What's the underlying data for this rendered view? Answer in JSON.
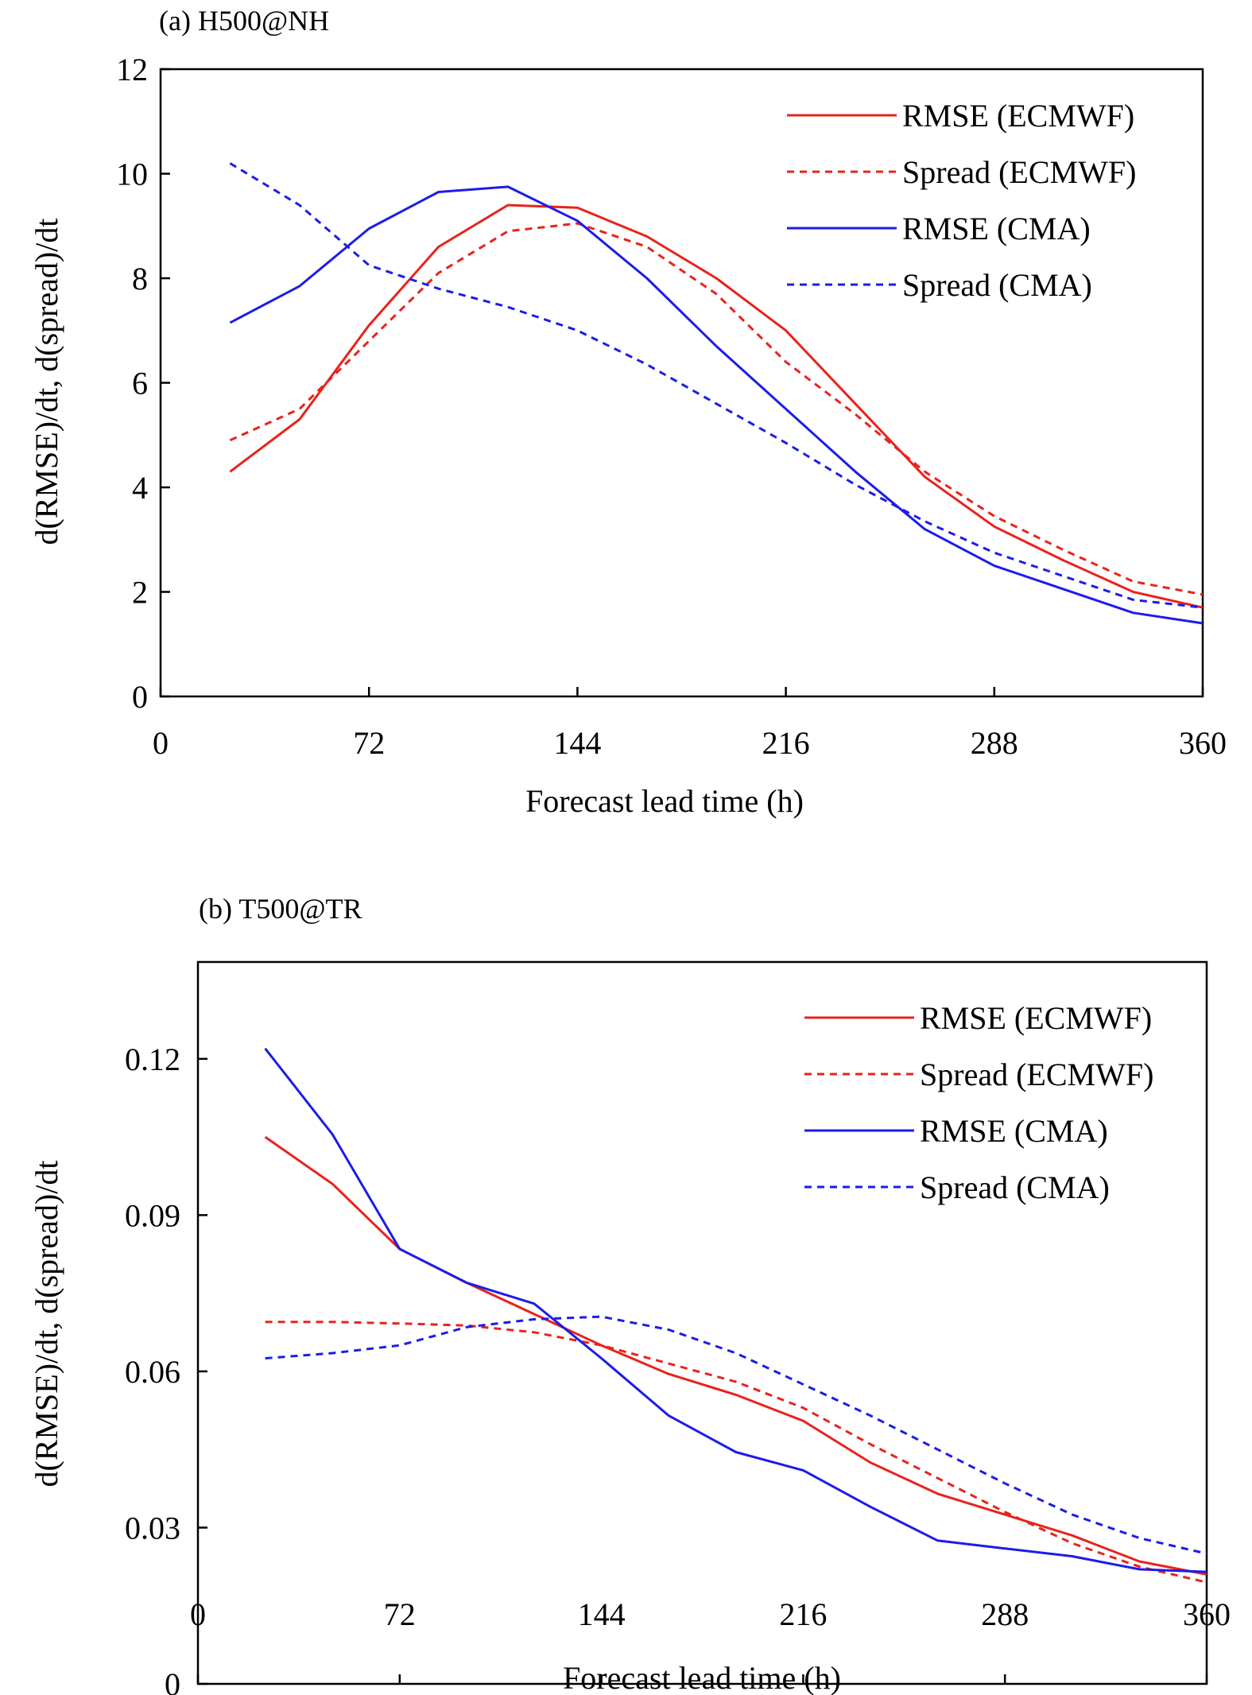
{
  "chart_data": [
    {
      "type": "line",
      "title": "(a) H500@NH",
      "xlabel": "Forecast lead time (h)",
      "ylabel": "d(RMSE)/dt, d(spread)/dt",
      "xlim": [
        0,
        360
      ],
      "ylim": [
        0,
        12
      ],
      "xticks": [
        0,
        72,
        144,
        216,
        288,
        360
      ],
      "yticks": [
        0,
        2,
        4,
        6,
        8,
        10,
        12
      ],
      "ytick_labels": [
        "0",
        "2",
        "4",
        "6",
        "8",
        "10",
        "12"
      ],
      "grid": false,
      "legend_position": "top-right",
      "series": [
        {
          "name": "RMSE (ECMWF)",
          "color": "#e8231c",
          "dash": "solid",
          "x": [
            24,
            48,
            72,
            96,
            120,
            144,
            168,
            192,
            216,
            240,
            264,
            288,
            312,
            336,
            360
          ],
          "y": [
            4.3,
            5.3,
            7.1,
            8.6,
            9.4,
            9.35,
            8.8,
            8.0,
            7.0,
            5.6,
            4.2,
            3.25,
            2.6,
            2.0,
            1.7
          ]
        },
        {
          "name": "Spread (ECMWF)",
          "color": "#e8231c",
          "dash": "dashed",
          "x": [
            24,
            48,
            72,
            96,
            120,
            144,
            168,
            192,
            216,
            240,
            264,
            288,
            312,
            336,
            360
          ],
          "y": [
            4.9,
            5.5,
            6.8,
            8.1,
            8.9,
            9.05,
            8.6,
            7.7,
            6.4,
            5.4,
            4.3,
            3.45,
            2.8,
            2.2,
            1.95
          ]
        },
        {
          "name": "RMSE (CMA)",
          "color": "#1c1ce8",
          "dash": "solid",
          "x": [
            24,
            48,
            72,
            96,
            120,
            144,
            168,
            192,
            216,
            240,
            264,
            288,
            312,
            336,
            360
          ],
          "y": [
            7.15,
            7.85,
            8.95,
            9.65,
            9.75,
            9.1,
            8.0,
            6.7,
            5.5,
            4.3,
            3.2,
            2.5,
            2.05,
            1.6,
            1.4
          ]
        },
        {
          "name": "Spread (CMA)",
          "color": "#1c1ce8",
          "dash": "dashed",
          "x": [
            24,
            48,
            72,
            96,
            120,
            144,
            168,
            192,
            216,
            240,
            264,
            288,
            312,
            336,
            360
          ],
          "y": [
            10.2,
            9.4,
            8.25,
            7.8,
            7.45,
            7.0,
            6.35,
            5.6,
            4.85,
            4.05,
            3.35,
            2.75,
            2.3,
            1.85,
            1.7
          ]
        }
      ]
    },
    {
      "type": "line",
      "title": "(b) T500@TR",
      "xlabel": "Forecast lead time (h)",
      "ylabel": "d(RMSE)/dt, d(spread)/dt",
      "xlim": [
        0,
        360
      ],
      "ylim": [
        0,
        0.1386
      ],
      "xticks": [
        0,
        72,
        144,
        216,
        288,
        360
      ],
      "yticks": [
        0,
        0.03,
        0.06,
        0.09,
        0.12
      ],
      "ytick_labels": [
        "0",
        "0.03",
        "0.06",
        "0.09",
        "0.12"
      ],
      "grid": false,
      "legend_position": "top-right",
      "series": [
        {
          "name": "RMSE (ECMWF)",
          "color": "#e8231c",
          "dash": "solid",
          "x": [
            24,
            48,
            72,
            96,
            120,
            144,
            168,
            192,
            216,
            240,
            264,
            288,
            312,
            336,
            360
          ],
          "y": [
            0.105,
            0.096,
            0.0835,
            0.077,
            0.071,
            0.065,
            0.0595,
            0.0555,
            0.0505,
            0.0425,
            0.0365,
            0.0325,
            0.0285,
            0.0235,
            0.021
          ]
        },
        {
          "name": "Spread (ECMWF)",
          "color": "#e8231c",
          "dash": "dashed",
          "x": [
            24,
            48,
            72,
            96,
            120,
            144,
            168,
            192,
            216,
            240,
            264,
            288,
            312,
            336,
            360
          ],
          "y": [
            0.0695,
            0.0695,
            0.0692,
            0.0688,
            0.0675,
            0.065,
            0.0615,
            0.058,
            0.053,
            0.046,
            0.0395,
            0.033,
            0.027,
            0.0225,
            0.0195
          ]
        },
        {
          "name": "RMSE (CMA)",
          "color": "#1c1ce8",
          "dash": "solid",
          "x": [
            24,
            48,
            72,
            96,
            120,
            144,
            168,
            192,
            216,
            240,
            264,
            288,
            312,
            336,
            360
          ],
          "y": [
            0.122,
            0.1055,
            0.0835,
            0.077,
            0.073,
            0.0625,
            0.0515,
            0.0445,
            0.041,
            0.034,
            0.0275,
            0.026,
            0.0245,
            0.022,
            0.0215
          ]
        },
        {
          "name": "Spread (CMA)",
          "color": "#1c1ce8",
          "dash": "dashed",
          "x": [
            24,
            48,
            72,
            96,
            120,
            144,
            168,
            192,
            216,
            240,
            264,
            288,
            312,
            336,
            360
          ],
          "y": [
            0.0625,
            0.0635,
            0.065,
            0.0685,
            0.07,
            0.0705,
            0.068,
            0.0635,
            0.0575,
            0.0515,
            0.045,
            0.0385,
            0.0325,
            0.028,
            0.025
          ]
        }
      ]
    }
  ]
}
